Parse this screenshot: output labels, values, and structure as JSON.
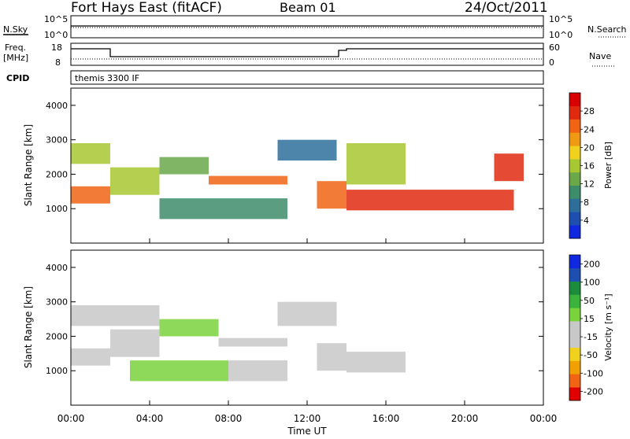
{
  "header": {
    "title": "Fort Hays East (fitACF)",
    "beam": "Beam 01",
    "date": "24/Oct/2011"
  },
  "noise_panel": {
    "left_label": "N.Sky",
    "right_label": "N.Search",
    "left_ticks": [
      "10^5",
      "10^0"
    ],
    "right_ticks": [
      "10^5",
      "10^0"
    ]
  },
  "freq_panel": {
    "left_label_line1": "Freq.",
    "left_label_line2": "[MHz]",
    "right_label": "Nave",
    "left_ticks": [
      "18",
      "8"
    ],
    "right_ticks": [
      "60",
      "0"
    ],
    "cpid_label": "CPID",
    "cpid_value": "themis 3300 IF"
  },
  "time_axis": {
    "label": "Time UT",
    "ticks": [
      "00:00",
      "04:00",
      "08:00",
      "12:00",
      "16:00",
      "20:00",
      "00:00"
    ]
  },
  "colors": {
    "power_scale": [
      "#1028e0",
      "#1e4fb0",
      "#2e6e9a",
      "#3d8c6a",
      "#6aa84a",
      "#a8c832",
      "#f0d21e",
      "#f09a14",
      "#f06414",
      "#e02a10",
      "#d80000"
    ],
    "velocity_scale": [
      "#e00000",
      "#f06414",
      "#f0a000",
      "#f0d21e",
      "#c8c8c8",
      "#c8c8c8",
      "#7ad23c",
      "#3ab43c",
      "#1a8c3c",
      "#1e4fb0",
      "#1028e0"
    ]
  },
  "chart_data": [
    {
      "type": "heatmap",
      "name": "Power",
      "ylabel": "Slant Range [km]",
      "xlabel": "",
      "x_ticks": [
        "00:00",
        "04:00",
        "08:00",
        "12:00",
        "16:00",
        "20:00",
        "00:00"
      ],
      "ylim": [
        0,
        4500
      ],
      "y_ticks": [
        1000,
        2000,
        3000,
        4000
      ],
      "colorbar_label": "Power [dB]",
      "colorbar_ticks": [
        "4",
        "8",
        "12",
        "16",
        "20",
        "24",
        "28"
      ],
      "bands": [
        {
          "start_h": 0.0,
          "end_h": 2.0,
          "range_km": [
            1150,
            1650
          ],
          "power_db": 24
        },
        {
          "start_h": 0.0,
          "end_h": 2.0,
          "range_km": [
            2300,
            2900
          ],
          "power_db": 16
        },
        {
          "start_h": 2.0,
          "end_h": 4.5,
          "range_km": [
            1400,
            2200
          ],
          "power_db": 14
        },
        {
          "start_h": 4.5,
          "end_h": 7.0,
          "range_km": [
            2000,
            2500
          ],
          "power_db": 12
        },
        {
          "start_h": 7.0,
          "end_h": 11.0,
          "range_km": [
            1700,
            1950
          ],
          "power_db": 24
        },
        {
          "start_h": 4.5,
          "end_h": 11.0,
          "range_km": [
            700,
            1300
          ],
          "power_db": 10
        },
        {
          "start_h": 10.5,
          "end_h": 13.5,
          "range_km": [
            2400,
            3000
          ],
          "power_db": 8
        },
        {
          "start_h": 12.5,
          "end_h": 14.0,
          "range_km": [
            1000,
            1800
          ],
          "power_db": 22
        },
        {
          "start_h": 14.0,
          "end_h": 22.5,
          "range_km": [
            950,
            1550
          ],
          "power_db": 26
        },
        {
          "start_h": 14.0,
          "end_h": 17.0,
          "range_km": [
            1700,
            2900
          ],
          "power_db": 14
        },
        {
          "start_h": 21.5,
          "end_h": 23.0,
          "range_km": [
            1800,
            2600
          ],
          "power_db": 26
        }
      ]
    },
    {
      "type": "heatmap",
      "name": "Velocity",
      "ylabel": "Slant Range [km]",
      "xlabel": "Time UT",
      "x_ticks": [
        "00:00",
        "04:00",
        "08:00",
        "12:00",
        "16:00",
        "20:00",
        "00:00"
      ],
      "ylim": [
        0,
        4500
      ],
      "y_ticks": [
        1000,
        2000,
        3000,
        4000
      ],
      "colorbar_label": "Velocity [m s⁻¹]",
      "colorbar_ticks": [
        "200",
        "100",
        "50",
        "15",
        "-15",
        "-50",
        "-100",
        "-200"
      ],
      "bands": [
        {
          "start_h": 0.0,
          "end_h": 2.0,
          "range_km": [
            1150,
            1650
          ],
          "velocity": 0
        },
        {
          "start_h": 0.0,
          "end_h": 4.5,
          "range_km": [
            2300,
            2900
          ],
          "velocity": 0
        },
        {
          "start_h": 2.0,
          "end_h": 4.5,
          "range_km": [
            1400,
            2200
          ],
          "velocity": 0
        },
        {
          "start_h": 4.5,
          "end_h": 7.5,
          "range_km": [
            2000,
            2500
          ],
          "velocity": 40
        },
        {
          "start_h": 7.5,
          "end_h": 11.0,
          "range_km": [
            1700,
            1950
          ],
          "velocity": -40
        },
        {
          "start_h": 3.0,
          "end_h": 8.0,
          "range_km": [
            700,
            1300
          ],
          "velocity": 40
        },
        {
          "start_h": 8.0,
          "end_h": 11.0,
          "range_km": [
            700,
            1300
          ],
          "velocity": -40
        },
        {
          "start_h": 10.5,
          "end_h": 13.5,
          "range_km": [
            2300,
            3000
          ],
          "velocity": 0
        },
        {
          "start_h": 12.5,
          "end_h": 14.0,
          "range_km": [
            1000,
            1800
          ],
          "velocity": 20
        },
        {
          "start_h": 14.0,
          "end_h": 17.0,
          "range_km": [
            950,
            1550
          ],
          "velocity": 0
        }
      ]
    }
  ]
}
